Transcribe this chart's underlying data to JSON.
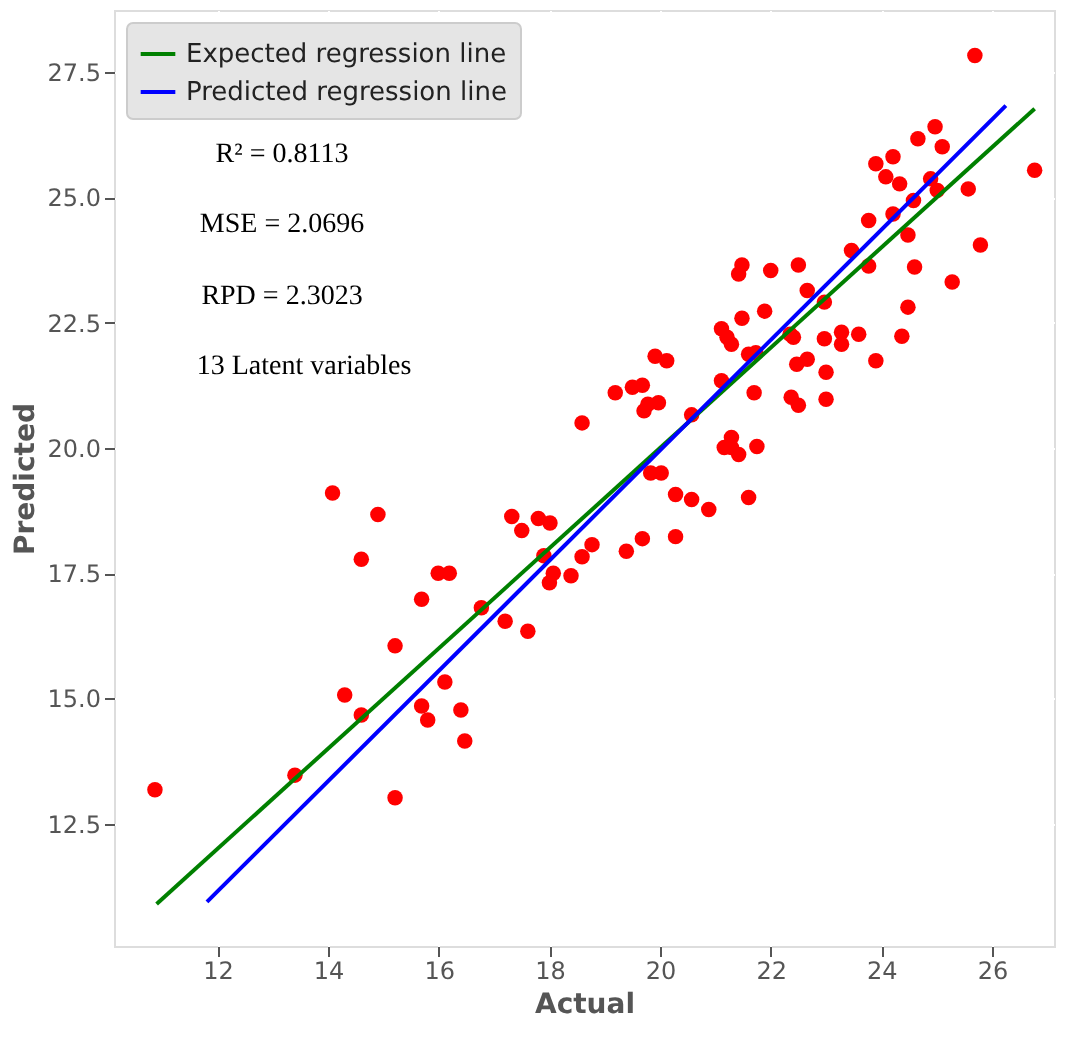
{
  "chart_data": {
    "type": "scatter",
    "xlabel": "Actual",
    "ylabel": "Predicted",
    "xlim": [
      10.13,
      27.12
    ],
    "ylim": [
      10.06,
      28.74
    ],
    "xticks": [
      12,
      14,
      16,
      18,
      20,
      22,
      24,
      26
    ],
    "yticks": [
      {
        "value": 12.5,
        "label": "12.5"
      },
      {
        "value": 15,
        "label": "15.0"
      },
      {
        "value": 17.5,
        "label": "17.5"
      },
      {
        "value": 20,
        "label": "20.0"
      },
      {
        "value": 22.5,
        "label": "22.5"
      },
      {
        "value": 25,
        "label": "25.0"
      },
      {
        "value": 27.5,
        "label": "27.5"
      }
    ],
    "grid": true,
    "legend": "top left",
    "annotations": [
      "R² = 0.8113",
      "MSE = 2.0696",
      "RPD = 2.3023",
      "13 Latent variables"
    ],
    "series": [
      {
        "color": "#ff0000",
        "marker": "circle",
        "x": [
          25.69,
          26.77,
          24.97,
          25.1,
          24.66,
          23.9,
          24.21,
          24.08,
          24.33,
          24.89,
          25.01,
          25.57,
          24.58,
          23.77,
          24.21,
          24.48,
          25.79,
          23.46,
          23.77,
          24.6,
          25.28,
          22.5,
          22.0,
          21.42,
          21.48,
          22.66,
          22.97,
          24.48,
          21.89,
          21.48,
          21.11,
          21.21,
          21.29,
          22.35,
          22.41,
          22.97,
          23.28,
          23.28,
          23.59,
          24.37,
          23.9,
          22.47,
          22.66,
          23.0,
          21.6,
          21.73,
          19.91,
          20.12,
          21.11,
          21.7,
          22.37,
          22.5,
          23.0,
          19.19,
          19.5,
          19.68,
          19.97,
          19.71,
          19.78,
          18.59,
          20.57,
          21.29,
          21.29,
          21.16,
          21.42,
          21.75,
          19.83,
          20.02,
          20.28,
          20.57,
          21.6,
          14.08,
          20.88,
          14.9,
          14.6,
          17.32,
          17.5,
          17.8,
          18.01,
          18.77,
          18.59,
          19.39,
          19.68,
          20.28,
          17.9,
          18.07,
          18.0,
          18.39,
          15.99,
          16.19,
          15.69,
          16.77,
          17.2,
          17.61,
          15.21,
          14.3,
          14.6,
          15.69,
          15.8,
          16.11,
          16.4,
          16.47,
          13.4,
          15.21,
          10.87
        ],
        "values": [
          27.83,
          25.54,
          26.41,
          26.01,
          26.17,
          25.67,
          25.81,
          25.41,
          25.27,
          25.37,
          25.14,
          25.17,
          24.94,
          24.54,
          24.67,
          24.25,
          24.05,
          23.94,
          23.63,
          23.61,
          23.31,
          23.65,
          23.54,
          23.47,
          23.65,
          23.14,
          22.91,
          22.81,
          22.73,
          22.59,
          22.38,
          22.21,
          22.07,
          22.27,
          22.21,
          22.18,
          22.31,
          22.07,
          22.27,
          22.23,
          21.74,
          21.67,
          21.77,
          21.51,
          21.87,
          21.9,
          21.83,
          21.74,
          21.34,
          21.1,
          21.01,
          20.85,
          20.97,
          21.1,
          21.21,
          21.25,
          20.9,
          20.74,
          20.87,
          20.5,
          20.66,
          20.21,
          20.01,
          20.01,
          19.87,
          20.03,
          19.5,
          19.5,
          19.07,
          18.97,
          19.01,
          19.1,
          18.77,
          18.67,
          17.78,
          18.63,
          18.35,
          18.59,
          18.5,
          18.07,
          17.83,
          17.94,
          18.19,
          18.23,
          17.85,
          17.5,
          17.31,
          17.45,
          17.5,
          17.5,
          16.98,
          16.81,
          16.54,
          16.34,
          16.05,
          15.07,
          14.67,
          14.85,
          14.57,
          15.33,
          14.77,
          14.15,
          13.47,
          13.02,
          13.18
        ]
      },
      {
        "type": "line",
        "name": "Expected regression line",
        "color": "#008000",
        "x": [
          10.9,
          26.77
        ],
        "values": [
          10.9,
          26.77
        ]
      },
      {
        "type": "line",
        "name": "Predicted regression line",
        "color": "#0000ff",
        "x": [
          11.81,
          26.25
        ],
        "values": [
          10.94,
          26.83
        ]
      }
    ]
  }
}
